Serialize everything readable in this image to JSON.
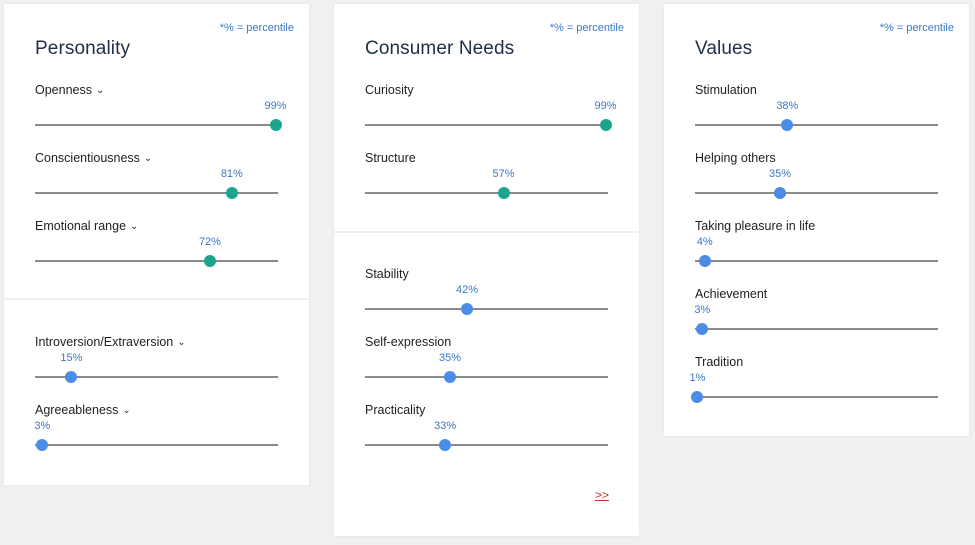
{
  "colors": {
    "teal": "#1aa58c",
    "blue": "#4b8de6",
    "link": "#3a78c8",
    "more": "#c0392b"
  },
  "personality": {
    "note": "*% = percentile",
    "title": "Personality",
    "traits": [
      {
        "label": "Openness",
        "pct": "99%",
        "value": 0.99,
        "color": "teal",
        "dropdown": true
      },
      {
        "label": "Conscientiousness",
        "pct": "81%",
        "value": 0.81,
        "color": "teal",
        "dropdown": true
      },
      {
        "label": "Emotional range",
        "pct": "72%",
        "value": 0.72,
        "color": "teal",
        "dropdown": true
      },
      {
        "label": "Introversion/Extraversion",
        "pct": "15%",
        "value": 0.15,
        "color": "blue",
        "dropdown": true
      },
      {
        "label": "Agreeableness",
        "pct": "3%",
        "value": 0.03,
        "color": "blue",
        "dropdown": true
      }
    ]
  },
  "consumer": {
    "note": "*% = percentile",
    "title": "Consumer Needs",
    "traits": [
      {
        "label": "Curiosity",
        "pct": "99%",
        "value": 0.99,
        "color": "teal"
      },
      {
        "label": "Structure",
        "pct": "57%",
        "value": 0.57,
        "color": "teal"
      },
      {
        "label": "Stability",
        "pct": "42%",
        "value": 0.42,
        "color": "blue"
      },
      {
        "label": "Self-expression",
        "pct": "35%",
        "value": 0.35,
        "color": "blue"
      },
      {
        "label": "Practicality",
        "pct": "33%",
        "value": 0.33,
        "color": "blue"
      }
    ],
    "more": ">>"
  },
  "values": {
    "note": "*% = percentile",
    "title": "Values",
    "traits": [
      {
        "label": "Stimulation",
        "pct": "38%",
        "value": 0.38,
        "color": "blue"
      },
      {
        "label": "Helping others",
        "pct": "35%",
        "value": 0.35,
        "color": "blue"
      },
      {
        "label": "Taking pleasure in life",
        "pct": "4%",
        "value": 0.04,
        "color": "blue"
      },
      {
        "label": "Achievement",
        "pct": "3%",
        "value": 0.03,
        "color": "blue"
      },
      {
        "label": "Tradition",
        "pct": "1%",
        "value": 0.01,
        "color": "blue"
      }
    ]
  }
}
